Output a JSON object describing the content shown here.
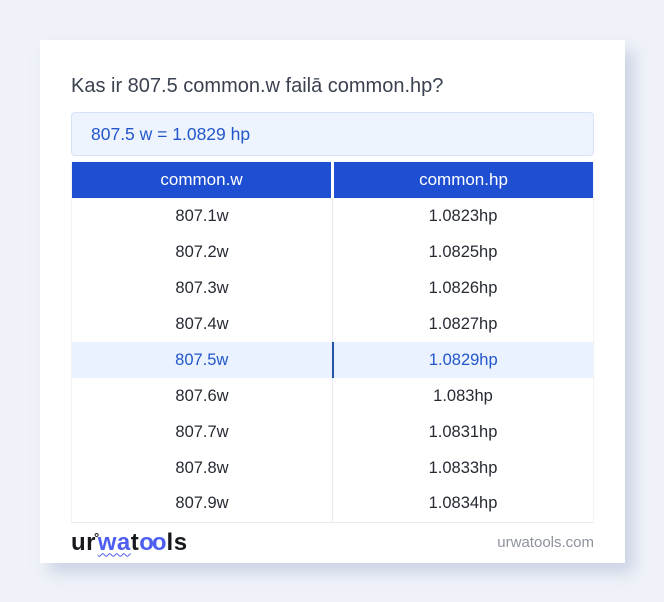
{
  "page": {
    "title": "Kas ir 807.5 common.w failā common.hp?"
  },
  "answer": {
    "text": "807.5 w = 1.0829 hp"
  },
  "table": {
    "headers": [
      "common.w",
      "common.hp"
    ],
    "rows": [
      {
        "w": "807.1w",
        "hp": "1.0823hp",
        "highlight": false
      },
      {
        "w": "807.2w",
        "hp": "1.0825hp",
        "highlight": false
      },
      {
        "w": "807.3w",
        "hp": "1.0826hp",
        "highlight": false
      },
      {
        "w": "807.4w",
        "hp": "1.0827hp",
        "highlight": false
      },
      {
        "w": "807.5w",
        "hp": "1.0829hp",
        "highlight": true
      },
      {
        "w": "807.6w",
        "hp": "1.083hp",
        "highlight": false
      },
      {
        "w": "807.7w",
        "hp": "1.0831hp",
        "highlight": false
      },
      {
        "w": "807.8w",
        "hp": "1.0833hp",
        "highlight": false
      },
      {
        "w": "807.9w",
        "hp": "1.0834hp",
        "highlight": false
      }
    ]
  },
  "footer": {
    "logo": {
      "ur": "ur",
      "degree": "°",
      "wa": "wa",
      "t": "t",
      "oo": "oo",
      "ls": "ls"
    },
    "domain": "urwatools.com"
  },
  "colors": {
    "page_background": "#eff2f8",
    "card_background": "#ffffff",
    "table_header_blue": "#1e4fd2",
    "answer_background": "#edf4fd",
    "answer_border": "#d6e3f6",
    "link_blue": "#2356cb",
    "highlight_row_background": "#e9f2fe",
    "highlight_divider": "#2253a6",
    "title_color": "#3a4150",
    "cell_text": "#262b33",
    "muted_text": "#8d929d",
    "logo_blue": "#4d5ef0",
    "logo_black": "#17191d"
  }
}
